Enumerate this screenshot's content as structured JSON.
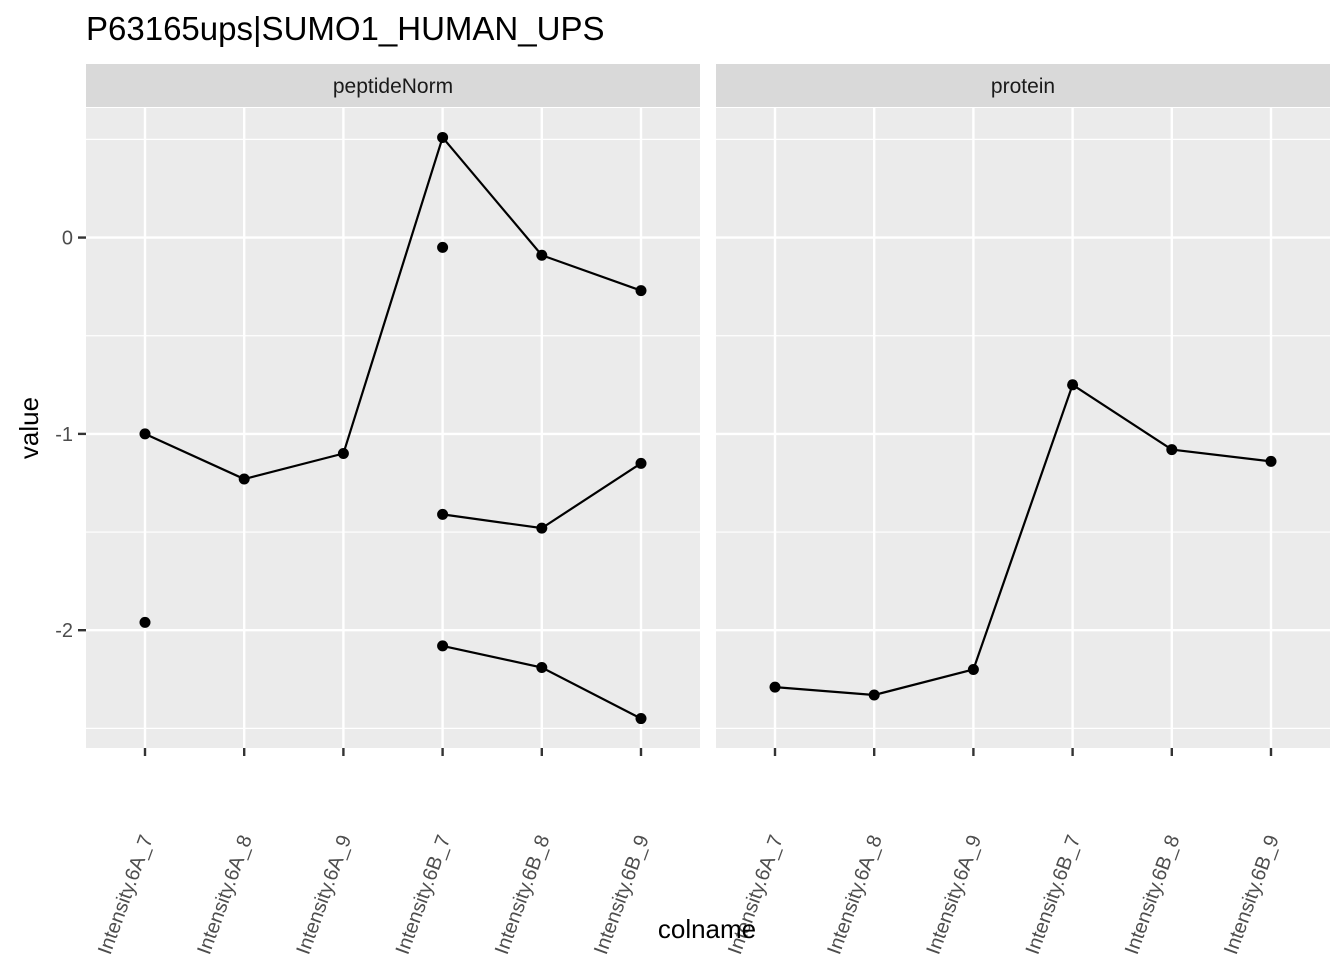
{
  "chart_data": {
    "type": "line",
    "title": "P63165ups|SUMO1_HUMAN_UPS",
    "xlabel": "colname",
    "ylabel": "value",
    "categories": [
      "Intensity.6A_7",
      "Intensity.6A_8",
      "Intensity.6A_9",
      "Intensity.6B_7",
      "Intensity.6B_8",
      "Intensity.6B_9"
    ],
    "ylim": [
      -2.6,
      0.66
    ],
    "yticks": [
      0,
      -1,
      -2
    ],
    "ytick_labels": [
      "0",
      "-1",
      "-2"
    ],
    "grid": true,
    "legend": "none",
    "facets": [
      {
        "label": "peptideNorm",
        "series": [
          {
            "values": [
              -1.0,
              -1.23,
              -1.1,
              0.51,
              -0.09,
              -0.27
            ]
          },
          {
            "values": [
              null,
              null,
              null,
              -1.41,
              -1.48,
              -1.15
            ]
          },
          {
            "values": [
              null,
              null,
              null,
              -2.08,
              -2.19,
              -2.45
            ]
          },
          {
            "values": [
              -1.96,
              null,
              null,
              -0.05,
              null,
              null
            ]
          }
        ]
      },
      {
        "label": "protein",
        "series": [
          {
            "values": [
              -2.29,
              -2.33,
              -2.2,
              -0.75,
              -1.08,
              -1.14
            ]
          }
        ]
      }
    ]
  }
}
